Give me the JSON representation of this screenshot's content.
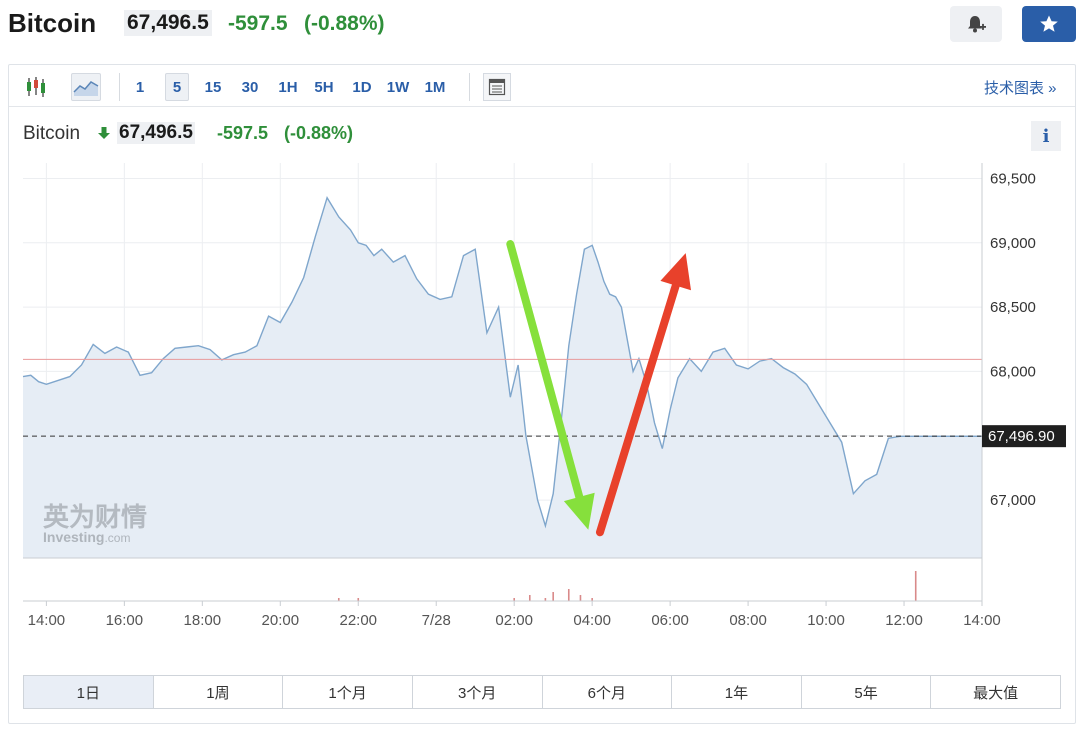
{
  "header": {
    "name": "Bitcoin",
    "price": "67,496.5",
    "change": "-597.5",
    "change_pct": "(-0.88%)"
  },
  "toolbar": {
    "chart_type_icons": [
      "candlestick-icon",
      "area-chart-icon"
    ],
    "timeframes": [
      "1",
      "5",
      "15",
      "30",
      "1H",
      "5H",
      "1D",
      "1W",
      "1M"
    ],
    "active_timeframe": "5",
    "table_icon": "table-icon",
    "tech_chart_link": "技术图表 »"
  },
  "instrument": {
    "name": "Bitcoin",
    "price": "67,496.5",
    "change": "-597.5",
    "change_pct": "(-0.88%)",
    "info": "i"
  },
  "watermark": {
    "cn": "英为财情",
    "en": "Investing",
    "suffix": ".com"
  },
  "range_tabs": [
    "1日",
    "1周",
    "1个月",
    "3个月",
    "6个月",
    "1年",
    "5年",
    "最大值"
  ],
  "active_range": "1日",
  "colors": {
    "line": "#7fa6cc",
    "area": "#e6edf5",
    "up": "#2f8f3a",
    "accent": "#2a5ea8",
    "prev_close_line": "#e99a9a",
    "green_arrow": "#86e03c",
    "red_arrow": "#e8412b"
  },
  "chart_data": {
    "type": "area",
    "title": "",
    "xlabel": "",
    "ylabel": "",
    "x_ticks": [
      "14:00",
      "16:00",
      "18:00",
      "20:00",
      "22:00",
      "7/28",
      "02:00",
      "04:00",
      "06:00",
      "08:00",
      "10:00",
      "12:00",
      "14:00"
    ],
    "x_tick_hours": [
      0,
      2,
      4,
      6,
      8,
      10,
      12,
      14,
      16,
      18,
      20,
      22,
      24
    ],
    "y_ticks": [
      67000,
      67500,
      68000,
      68500,
      69000,
      69500
    ],
    "y_tick_labels": [
      "67,000",
      "68,000",
      "68,500",
      "69,000",
      "69,500"
    ],
    "ylim": [
      66550,
      69620
    ],
    "x_range_hours": [
      -0.6,
      24
    ],
    "prev_close": 68094,
    "last_price": 67496.9,
    "last_price_label": "67,496.90",
    "series": [
      {
        "name": "",
        "hours": [
          -0.6,
          -0.4,
          -0.2,
          0.0,
          0.3,
          0.6,
          0.9,
          1.2,
          1.5,
          1.8,
          2.1,
          2.4,
          2.7,
          3.0,
          3.3,
          3.6,
          3.9,
          4.2,
          4.5,
          4.8,
          5.1,
          5.4,
          5.7,
          6.0,
          6.3,
          6.6,
          6.9,
          7.2,
          7.5,
          7.8,
          8.0,
          8.2,
          8.4,
          8.6,
          8.9,
          9.2,
          9.5,
          9.8,
          10.1,
          10.4,
          10.7,
          11.0,
          11.3,
          11.6,
          11.9,
          12.1,
          12.3,
          12.6,
          12.8,
          13.0,
          13.2,
          13.4,
          13.6,
          13.8,
          14.0,
          14.15,
          14.3,
          14.45,
          14.6,
          14.75,
          14.9,
          15.05,
          15.2,
          15.4,
          15.6,
          15.8,
          16.0,
          16.2,
          16.5,
          16.8,
          17.1,
          17.4,
          17.7,
          18.0,
          18.3,
          18.6,
          18.9,
          19.2,
          19.5,
          19.8,
          20.1,
          20.4,
          20.7,
          21.0,
          21.3,
          21.6,
          21.9,
          22.2,
          22.5,
          22.8,
          23.1,
          23.4,
          23.6,
          23.8,
          24.0
        ],
        "values": [
          67960,
          67970,
          67920,
          67900,
          67930,
          67960,
          68050,
          68210,
          68140,
          68190,
          68150,
          67970,
          67990,
          68100,
          68180,
          68190,
          68200,
          68170,
          68090,
          68130,
          68150,
          68200,
          68430,
          68380,
          68540,
          68730,
          69050,
          69350,
          69200,
          69100,
          69000,
          68980,
          68900,
          68950,
          68850,
          68900,
          68720,
          68600,
          68560,
          68580,
          68900,
          68950,
          68300,
          68500,
          67800,
          68050,
          67500,
          67000,
          66800,
          67050,
          67600,
          68200,
          68600,
          68950,
          68980,
          68850,
          68700,
          68600,
          68580,
          68500,
          68250,
          68000,
          68100,
          67900,
          67600,
          67400,
          67700,
          67950,
          68100,
          68000,
          68150,
          68180,
          68050,
          68020,
          68080,
          68100,
          68030,
          67980,
          67900,
          67750,
          67600,
          67450,
          67050,
          67150,
          67200,
          67480,
          67496,
          67496,
          67496,
          67496,
          67496,
          67496,
          67496,
          67496,
          67496
        ]
      }
    ],
    "volume": {
      "hours": [
        7.5,
        8.0,
        12.0,
        12.4,
        12.8,
        13.0,
        13.4,
        13.7,
        14.0,
        22.3
      ],
      "values": [
        1,
        1,
        1,
        2,
        1,
        3,
        4,
        2,
        1,
        10
      ]
    },
    "annotations": [
      {
        "type": "arrow",
        "color": "green_arrow",
        "from": {
          "hour": 11.9,
          "value": 68990
        },
        "to": {
          "hour": 13.9,
          "value": 66770
        }
      },
      {
        "type": "arrow",
        "color": "red_arrow",
        "from": {
          "hour": 14.2,
          "value": 66750
        },
        "to": {
          "hour": 16.4,
          "value": 68920
        }
      }
    ],
    "grid": true,
    "legend": "none"
  }
}
